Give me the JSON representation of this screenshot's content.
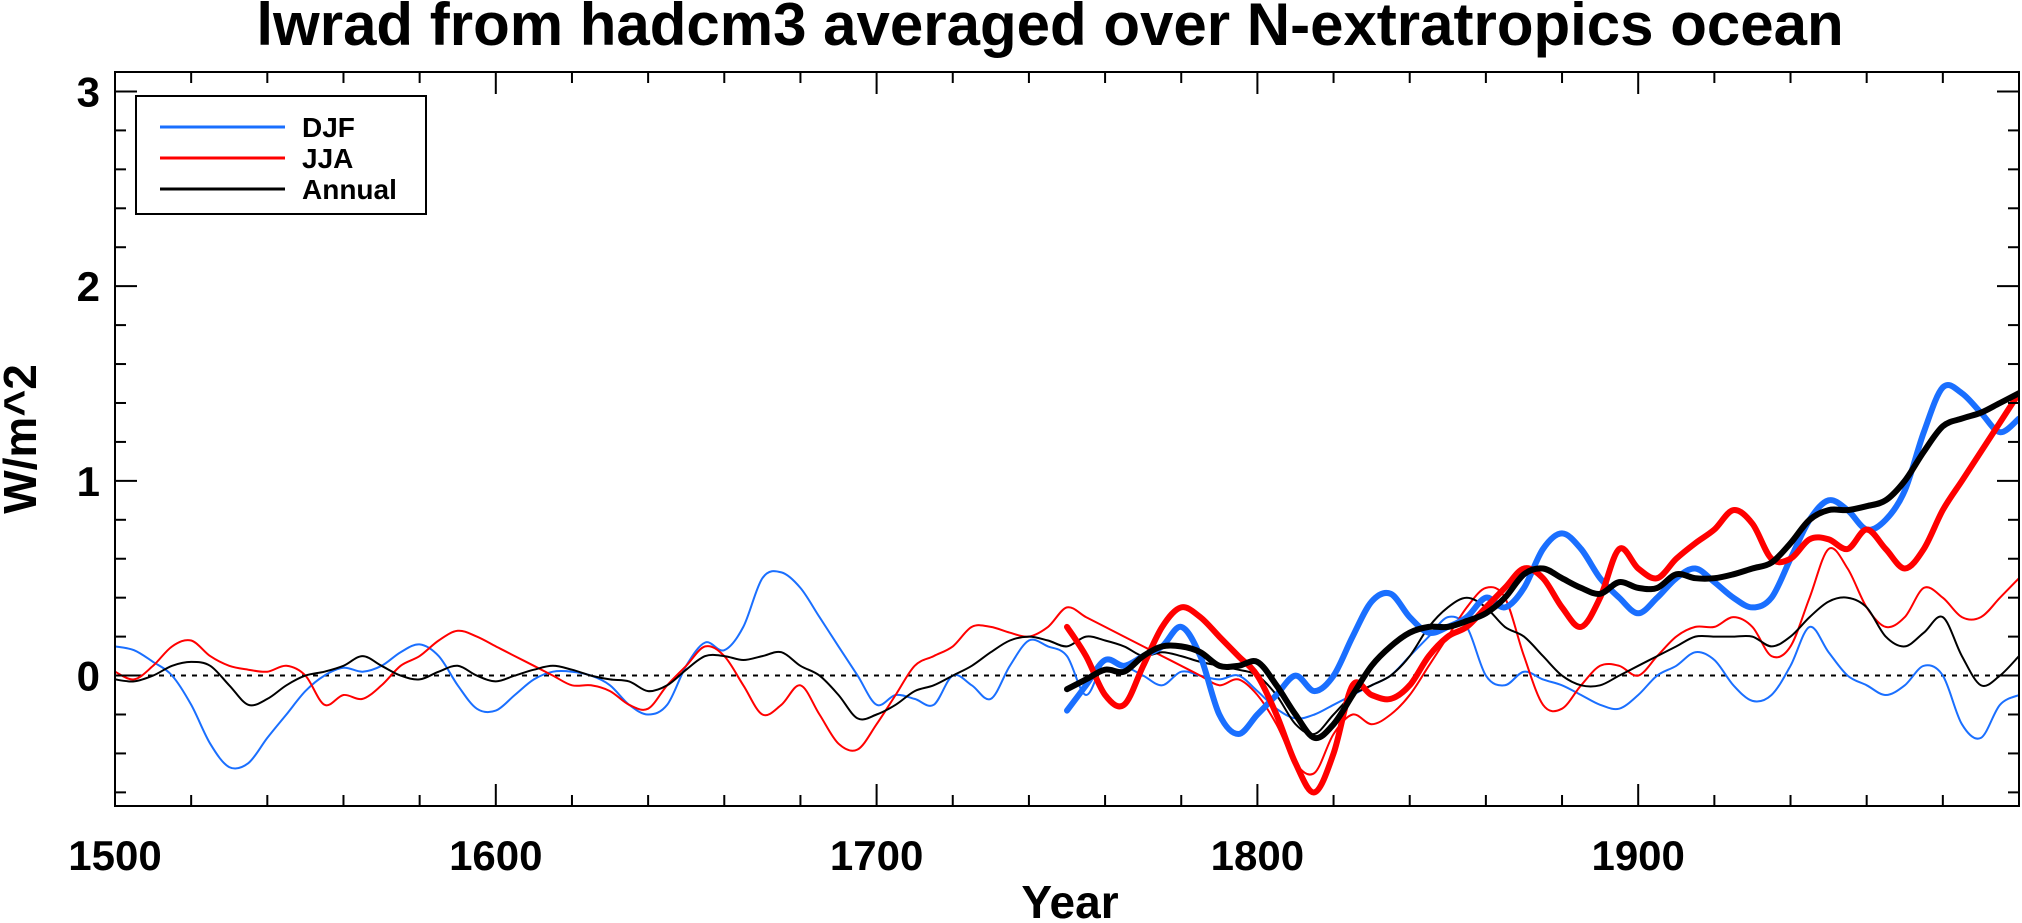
{
  "chart_data": {
    "type": "line",
    "title": "lwrad from hadcm3 averaged over N-extratropics ocean",
    "xlabel": "Year",
    "ylabel": "W/m^2",
    "xlim": [
      1500,
      2000
    ],
    "ylim": [
      -0.67,
      3.1
    ],
    "x_ticks": [
      1500,
      1600,
      1700,
      1800,
      1900
    ],
    "y_ticks": [
      0,
      1,
      2,
      3
    ],
    "reference_line": 0,
    "legend": {
      "position": "top-left",
      "entries": [
        "DJF",
        "JJA",
        "Annual"
      ]
    },
    "colors": {
      "DJF": "#1a6fff",
      "JJA": "#ff0000",
      "Annual": "#000000"
    },
    "series": [
      {
        "name": "DJF",
        "style": "thin",
        "color": "#1a6fff",
        "x": [
          1500,
          1505,
          1510,
          1515,
          1520,
          1525,
          1530,
          1535,
          1540,
          1545,
          1550,
          1555,
          1560,
          1565,
          1570,
          1575,
          1580,
          1585,
          1590,
          1595,
          1600,
          1605,
          1610,
          1615,
          1620,
          1625,
          1630,
          1635,
          1640,
          1645,
          1650,
          1655,
          1660,
          1665,
          1670,
          1675,
          1680,
          1685,
          1690,
          1695,
          1700,
          1705,
          1710,
          1715,
          1720,
          1725,
          1730,
          1735,
          1740,
          1745,
          1750,
          1755,
          1760,
          1765,
          1770,
          1775,
          1780,
          1785,
          1790,
          1795,
          1800,
          1805,
          1810,
          1815,
          1820,
          1825,
          1830,
          1835,
          1840,
          1845,
          1850,
          1855,
          1860,
          1865,
          1870,
          1875,
          1880,
          1885,
          1890,
          1895,
          1900,
          1905,
          1910,
          1915,
          1920,
          1925,
          1930,
          1935,
          1940,
          1945,
          1950,
          1955,
          1960,
          1965,
          1970,
          1975,
          1980,
          1985,
          1990,
          1995,
          2000
        ],
        "y": [
          0.15,
          0.13,
          0.07,
          0.0,
          -0.15,
          -0.35,
          -0.47,
          -0.45,
          -0.32,
          -0.2,
          -0.08,
          0.0,
          0.04,
          0.02,
          0.05,
          0.12,
          0.16,
          0.1,
          -0.05,
          -0.17,
          -0.18,
          -0.1,
          -0.02,
          0.02,
          0.02,
          0.0,
          -0.05,
          -0.15,
          -0.2,
          -0.15,
          0.05,
          0.17,
          0.13,
          0.25,
          0.5,
          0.53,
          0.45,
          0.3,
          0.15,
          0.0,
          -0.15,
          -0.1,
          -0.12,
          -0.15,
          0.0,
          -0.05,
          -0.12,
          0.05,
          0.18,
          0.15,
          0.1,
          -0.1,
          0.08,
          0.05,
          0.0,
          -0.05,
          0.02,
          0.0,
          -0.02,
          0.0,
          -0.08,
          -0.17,
          -0.22,
          -0.2,
          -0.15,
          -0.1,
          -0.05,
          0.0,
          0.1,
          0.2,
          0.3,
          0.25,
          0.0,
          -0.05,
          0.02,
          -0.02,
          -0.05,
          -0.1,
          -0.15,
          -0.17,
          -0.1,
          0.0,
          0.05,
          0.12,
          0.08,
          -0.05,
          -0.13,
          -0.1,
          0.05,
          0.25,
          0.12,
          0.0,
          -0.05,
          -0.1,
          -0.05,
          0.05,
          0.0,
          -0.25,
          -0.32,
          -0.15,
          -0.1
        ]
      },
      {
        "name": "JJA",
        "style": "thin",
        "color": "#ff0000",
        "x": [
          1500,
          1505,
          1510,
          1515,
          1520,
          1525,
          1530,
          1535,
          1540,
          1545,
          1550,
          1555,
          1560,
          1565,
          1570,
          1575,
          1580,
          1585,
          1590,
          1595,
          1600,
          1605,
          1610,
          1615,
          1620,
          1625,
          1630,
          1635,
          1640,
          1645,
          1650,
          1655,
          1660,
          1665,
          1670,
          1675,
          1680,
          1685,
          1690,
          1695,
          1700,
          1705,
          1710,
          1715,
          1720,
          1725,
          1730,
          1735,
          1740,
          1745,
          1750,
          1755,
          1760,
          1765,
          1770,
          1775,
          1780,
          1785,
          1790,
          1795,
          1800,
          1805,
          1810,
          1815,
          1820,
          1825,
          1830,
          1835,
          1840,
          1845,
          1850,
          1855,
          1860,
          1865,
          1870,
          1875,
          1880,
          1885,
          1890,
          1895,
          1900,
          1905,
          1910,
          1915,
          1920,
          1925,
          1930,
          1935,
          1940,
          1945,
          1950,
          1955,
          1960,
          1965,
          1970,
          1975,
          1980,
          1985,
          1990,
          1995,
          2000
        ],
        "y": [
          0.02,
          -0.02,
          0.05,
          0.15,
          0.18,
          0.1,
          0.05,
          0.03,
          0.02,
          0.05,
          0.0,
          -0.15,
          -0.1,
          -0.12,
          -0.05,
          0.05,
          0.1,
          0.18,
          0.23,
          0.2,
          0.15,
          0.1,
          0.05,
          0.0,
          -0.05,
          -0.05,
          -0.08,
          -0.15,
          -0.17,
          -0.05,
          0.05,
          0.15,
          0.1,
          -0.05,
          -0.2,
          -0.15,
          -0.05,
          -0.2,
          -0.35,
          -0.38,
          -0.25,
          -0.1,
          0.05,
          0.1,
          0.15,
          0.25,
          0.25,
          0.22,
          0.2,
          0.25,
          0.35,
          0.3,
          0.25,
          0.2,
          0.15,
          0.1,
          0.05,
          0.0,
          -0.05,
          -0.02,
          -0.1,
          -0.25,
          -0.45,
          -0.5,
          -0.3,
          -0.2,
          -0.25,
          -0.2,
          -0.1,
          0.05,
          0.2,
          0.35,
          0.45,
          0.4,
          0.1,
          -0.15,
          -0.17,
          -0.05,
          0.05,
          0.05,
          0.0,
          0.1,
          0.2,
          0.25,
          0.25,
          0.3,
          0.25,
          0.1,
          0.15,
          0.4,
          0.65,
          0.55,
          0.35,
          0.25,
          0.3,
          0.45,
          0.4,
          0.3,
          0.3,
          0.4,
          0.5
        ]
      },
      {
        "name": "Annual",
        "style": "thin",
        "color": "#000000",
        "x": [
          1500,
          1505,
          1510,
          1515,
          1520,
          1525,
          1530,
          1535,
          1540,
          1545,
          1550,
          1555,
          1560,
          1565,
          1570,
          1575,
          1580,
          1585,
          1590,
          1595,
          1600,
          1605,
          1610,
          1615,
          1620,
          1625,
          1630,
          1635,
          1640,
          1645,
          1650,
          1655,
          1660,
          1665,
          1670,
          1675,
          1680,
          1685,
          1690,
          1695,
          1700,
          1705,
          1710,
          1715,
          1720,
          1725,
          1730,
          1735,
          1740,
          1745,
          1750,
          1755,
          1760,
          1765,
          1770,
          1775,
          1780,
          1785,
          1790,
          1795,
          1800,
          1805,
          1810,
          1815,
          1820,
          1825,
          1830,
          1835,
          1840,
          1845,
          1850,
          1855,
          1860,
          1865,
          1870,
          1875,
          1880,
          1885,
          1890,
          1895,
          1900,
          1905,
          1910,
          1915,
          1920,
          1925,
          1930,
          1935,
          1940,
          1945,
          1950,
          1955,
          1960,
          1965,
          1970,
          1975,
          1980,
          1985,
          1990,
          1995,
          2000
        ],
        "y": [
          -0.02,
          -0.03,
          0.0,
          0.05,
          0.07,
          0.05,
          -0.05,
          -0.15,
          -0.12,
          -0.05,
          0.0,
          0.02,
          0.05,
          0.1,
          0.05,
          0.0,
          -0.02,
          0.02,
          0.05,
          0.0,
          -0.03,
          0.0,
          0.03,
          0.05,
          0.03,
          0.0,
          -0.02,
          -0.03,
          -0.08,
          -0.05,
          0.03,
          0.1,
          0.1,
          0.08,
          0.1,
          0.12,
          0.05,
          0.0,
          -0.1,
          -0.22,
          -0.2,
          -0.15,
          -0.08,
          -0.05,
          0.0,
          0.05,
          0.12,
          0.18,
          0.2,
          0.18,
          0.15,
          0.2,
          0.18,
          0.15,
          0.1,
          0.12,
          0.1,
          0.07,
          0.05,
          0.03,
          0.0,
          -0.1,
          -0.25,
          -0.3,
          -0.2,
          -0.1,
          -0.05,
          0.0,
          0.1,
          0.25,
          0.35,
          0.4,
          0.35,
          0.25,
          0.2,
          0.1,
          0.0,
          -0.05,
          -0.05,
          0.0,
          0.05,
          0.1,
          0.15,
          0.2,
          0.2,
          0.2,
          0.2,
          0.15,
          0.2,
          0.3,
          0.38,
          0.4,
          0.35,
          0.2,
          0.15,
          0.22,
          0.3,
          0.1,
          -0.05,
          0.0,
          0.1
        ]
      },
      {
        "name": "DJF",
        "style": "smoothed",
        "color": "#1a6fff",
        "x": [
          1750,
          1755,
          1760,
          1765,
          1770,
          1775,
          1780,
          1785,
          1790,
          1795,
          1800,
          1805,
          1810,
          1815,
          1820,
          1825,
          1830,
          1835,
          1840,
          1845,
          1850,
          1855,
          1860,
          1865,
          1870,
          1875,
          1880,
          1885,
          1890,
          1895,
          1900,
          1905,
          1910,
          1915,
          1920,
          1925,
          1930,
          1935,
          1940,
          1945,
          1950,
          1955,
          1960,
          1965,
          1970,
          1975,
          1980,
          1985,
          1990,
          1995,
          2000
        ],
        "y": [
          -0.18,
          -0.05,
          0.08,
          0.05,
          0.1,
          0.15,
          0.25,
          0.1,
          -0.2,
          -0.3,
          -0.2,
          -0.1,
          0.0,
          -0.08,
          0.0,
          0.2,
          0.38,
          0.42,
          0.3,
          0.22,
          0.25,
          0.3,
          0.4,
          0.35,
          0.45,
          0.65,
          0.73,
          0.65,
          0.5,
          0.4,
          0.32,
          0.4,
          0.5,
          0.55,
          0.48,
          0.4,
          0.35,
          0.4,
          0.6,
          0.8,
          0.9,
          0.85,
          0.75,
          0.8,
          0.95,
          1.25,
          1.48,
          1.45,
          1.35,
          1.25,
          1.32
        ]
      },
      {
        "name": "JJA",
        "style": "smoothed",
        "color": "#ff0000",
        "x": [
          1750,
          1755,
          1760,
          1765,
          1770,
          1775,
          1780,
          1785,
          1790,
          1795,
          1800,
          1805,
          1810,
          1815,
          1820,
          1825,
          1830,
          1835,
          1840,
          1845,
          1850,
          1855,
          1860,
          1865,
          1870,
          1875,
          1880,
          1885,
          1890,
          1895,
          1900,
          1905,
          1910,
          1915,
          1920,
          1925,
          1930,
          1935,
          1940,
          1945,
          1950,
          1955,
          1960,
          1965,
          1970,
          1975,
          1980,
          1985,
          1990,
          1995,
          2000
        ],
        "y": [
          0.25,
          0.1,
          -0.1,
          -0.15,
          0.05,
          0.25,
          0.35,
          0.3,
          0.2,
          0.1,
          0.0,
          -0.2,
          -0.45,
          -0.6,
          -0.4,
          -0.05,
          -0.1,
          -0.12,
          -0.05,
          0.1,
          0.2,
          0.25,
          0.35,
          0.45,
          0.55,
          0.5,
          0.35,
          0.25,
          0.4,
          0.65,
          0.55,
          0.5,
          0.6,
          0.68,
          0.75,
          0.85,
          0.78,
          0.6,
          0.6,
          0.7,
          0.7,
          0.65,
          0.75,
          0.65,
          0.55,
          0.65,
          0.85,
          1.0,
          1.15,
          1.3,
          1.45
        ]
      },
      {
        "name": "Annual",
        "style": "smoothed",
        "color": "#000000",
        "x": [
          1750,
          1755,
          1760,
          1765,
          1770,
          1775,
          1780,
          1785,
          1790,
          1795,
          1800,
          1805,
          1810,
          1815,
          1820,
          1825,
          1830,
          1835,
          1840,
          1845,
          1850,
          1855,
          1860,
          1865,
          1870,
          1875,
          1880,
          1885,
          1890,
          1895,
          1900,
          1905,
          1910,
          1915,
          1920,
          1925,
          1930,
          1935,
          1940,
          1945,
          1950,
          1955,
          1960,
          1965,
          1970,
          1975,
          1980,
          1985,
          1990,
          1995,
          2000
        ],
        "y": [
          -0.07,
          -0.02,
          0.03,
          0.02,
          0.1,
          0.15,
          0.15,
          0.12,
          0.05,
          0.05,
          0.07,
          -0.05,
          -0.2,
          -0.32,
          -0.25,
          -0.1,
          0.05,
          0.15,
          0.22,
          0.25,
          0.25,
          0.28,
          0.32,
          0.4,
          0.52,
          0.55,
          0.5,
          0.45,
          0.42,
          0.48,
          0.45,
          0.45,
          0.52,
          0.5,
          0.5,
          0.52,
          0.55,
          0.58,
          0.68,
          0.8,
          0.85,
          0.85,
          0.87,
          0.9,
          1.0,
          1.15,
          1.28,
          1.32,
          1.35,
          1.4,
          1.45
        ]
      }
    ]
  }
}
